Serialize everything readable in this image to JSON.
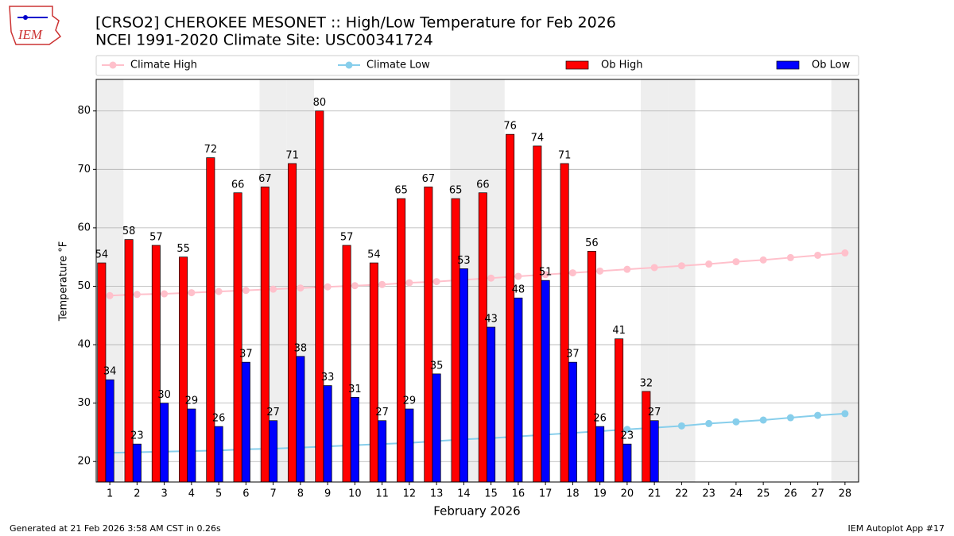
{
  "chart_data": {
    "type": "bar",
    "title": "[CRSO2] CHEROKEE MESONET :: High/Low Temperature for Feb 2026",
    "subtitle": "NCEI 1991-2020 Climate Site: USC00341724",
    "logo_text": "IEM",
    "x_label": "February 2026",
    "y_label": "Temperature °F",
    "footer_left": "Generated at 21 Feb 2026 3:58 AM CST in 0.26s",
    "footer_right": "IEM Autoplot App #17",
    "categories": [
      "1",
      "2",
      "3",
      "4",
      "5",
      "6",
      "7",
      "8",
      "9",
      "10",
      "11",
      "12",
      "13",
      "14",
      "15",
      "16",
      "17",
      "18",
      "19",
      "20",
      "21",
      "22",
      "23",
      "24",
      "25",
      "26",
      "27",
      "28"
    ],
    "shaded_categories": [
      "1",
      "7",
      "8",
      "14",
      "15",
      "21",
      "22",
      "28"
    ],
    "series": [
      {
        "name": "Climate High",
        "type": "line",
        "color": "#ffc0cb",
        "values": [
          48.4,
          48.6,
          48.7,
          48.9,
          49.1,
          49.3,
          49.5,
          49.7,
          49.9,
          50.1,
          50.3,
          50.6,
          50.8,
          51.1,
          51.4,
          51.7,
          52.0,
          52.3,
          52.6,
          52.9,
          53.2,
          53.5,
          53.8,
          54.2,
          54.5,
          54.9,
          55.3,
          55.7
        ]
      },
      {
        "name": "Climate Low",
        "type": "line",
        "color": "#87ceeb",
        "values": [
          21.5,
          21.6,
          21.7,
          21.8,
          21.9,
          22.1,
          22.2,
          22.4,
          22.6,
          22.8,
          23.0,
          23.2,
          23.5,
          23.8,
          24.0,
          24.3,
          24.6,
          24.9,
          25.2,
          25.5,
          25.8,
          26.1,
          26.5,
          26.8,
          27.1,
          27.5,
          27.9,
          28.2
        ]
      },
      {
        "name": "Ob High",
        "type": "bar",
        "color": "#ff0000",
        "values": [
          54,
          58,
          57,
          55,
          72,
          66,
          67,
          71,
          80,
          57,
          54,
          65,
          67,
          65,
          66,
          76,
          74,
          71,
          56,
          41,
          32,
          null,
          null,
          null,
          null,
          null,
          null,
          null
        ]
      },
      {
        "name": "Ob Low",
        "type": "bar",
        "color": "#0000ff",
        "values": [
          34,
          23,
          30,
          29,
          26,
          37,
          27,
          38,
          33,
          31,
          27,
          29,
          35,
          53,
          43,
          48,
          51,
          37,
          26,
          23,
          27,
          null,
          null,
          null,
          null,
          null,
          null,
          null
        ]
      }
    ],
    "ylim": [
      16.5,
      85.4
    ],
    "yticks": [
      20,
      30,
      40,
      50,
      60,
      70,
      80
    ],
    "grid": true
  }
}
